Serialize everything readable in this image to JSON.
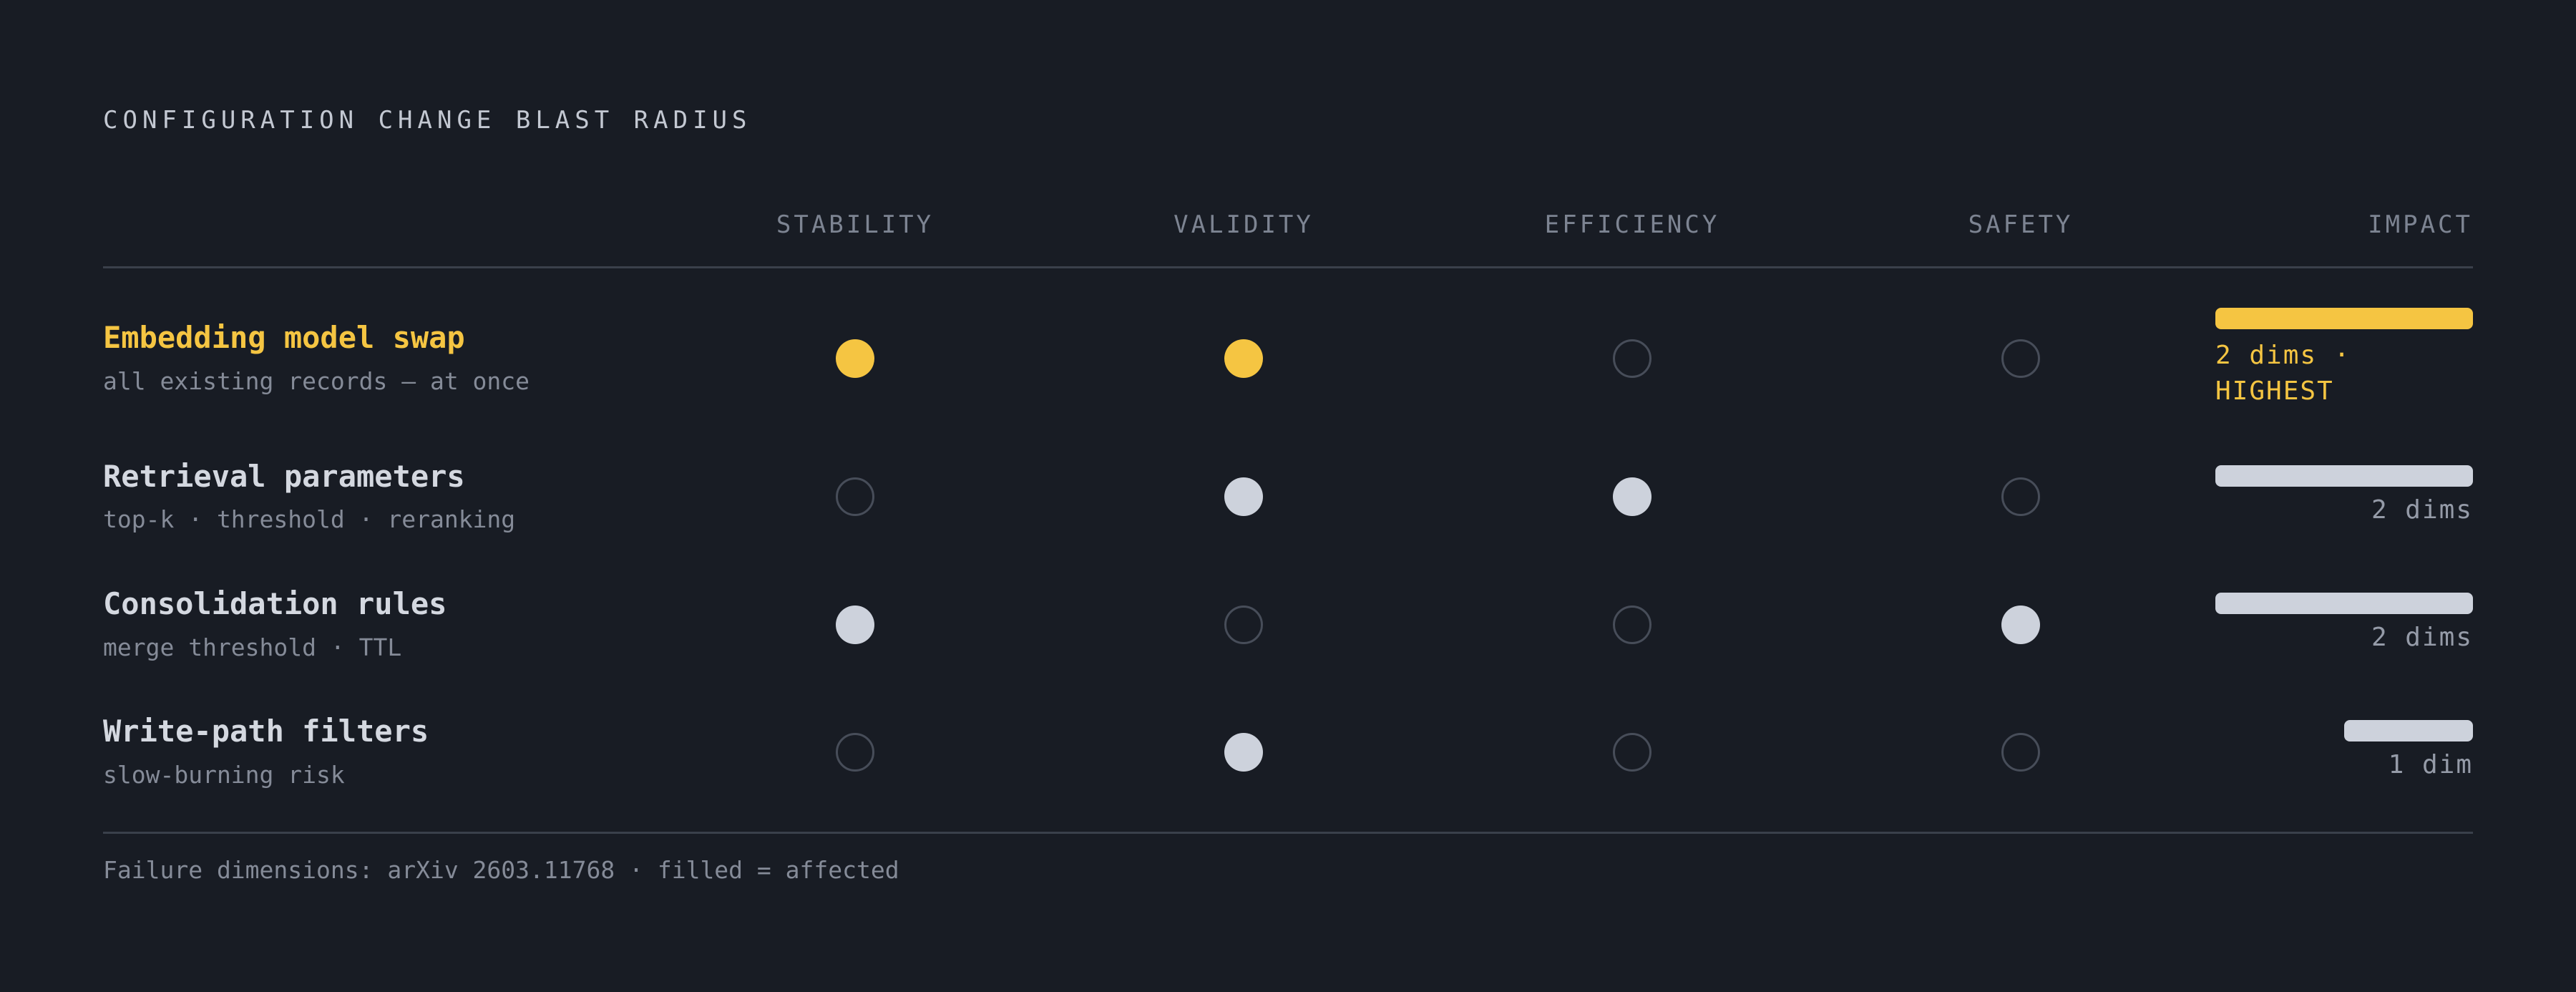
{
  "title": "CONFIGURATION CHANGE BLAST RADIUS",
  "columns": [
    "STABILITY",
    "VALIDITY",
    "EFFICIENCY",
    "SAFETY"
  ],
  "impact_header": "IMPACT",
  "colors": {
    "background": "#181c24",
    "highlight": "#f5c542",
    "filled": "#cdd2dc",
    "empty_outline": "#474d59"
  },
  "rows": [
    {
      "title": "Embedding model swap",
      "subtitle": "all existing records — at once",
      "affected": [
        true,
        true,
        false,
        false
      ],
      "highlight": true,
      "impact_dims": 2,
      "impact_label_line1": "2 dims ·",
      "impact_label_line2": "HIGHEST"
    },
    {
      "title": "Retrieval parameters",
      "subtitle": "top-k · threshold · reranking",
      "affected": [
        false,
        true,
        true,
        false
      ],
      "highlight": false,
      "impact_dims": 2,
      "impact_label": "2 dims"
    },
    {
      "title": "Consolidation rules",
      "subtitle": "merge threshold · TTL",
      "affected": [
        true,
        false,
        false,
        true
      ],
      "highlight": false,
      "impact_dims": 2,
      "impact_label": "2 dims"
    },
    {
      "title": "Write-path filters",
      "subtitle": "slow-burning risk",
      "affected": [
        false,
        true,
        false,
        false
      ],
      "highlight": false,
      "impact_dims": 1,
      "impact_label": "1 dim"
    }
  ],
  "footer": "Failure dimensions: arXiv 2603.11768 · filled = affected"
}
